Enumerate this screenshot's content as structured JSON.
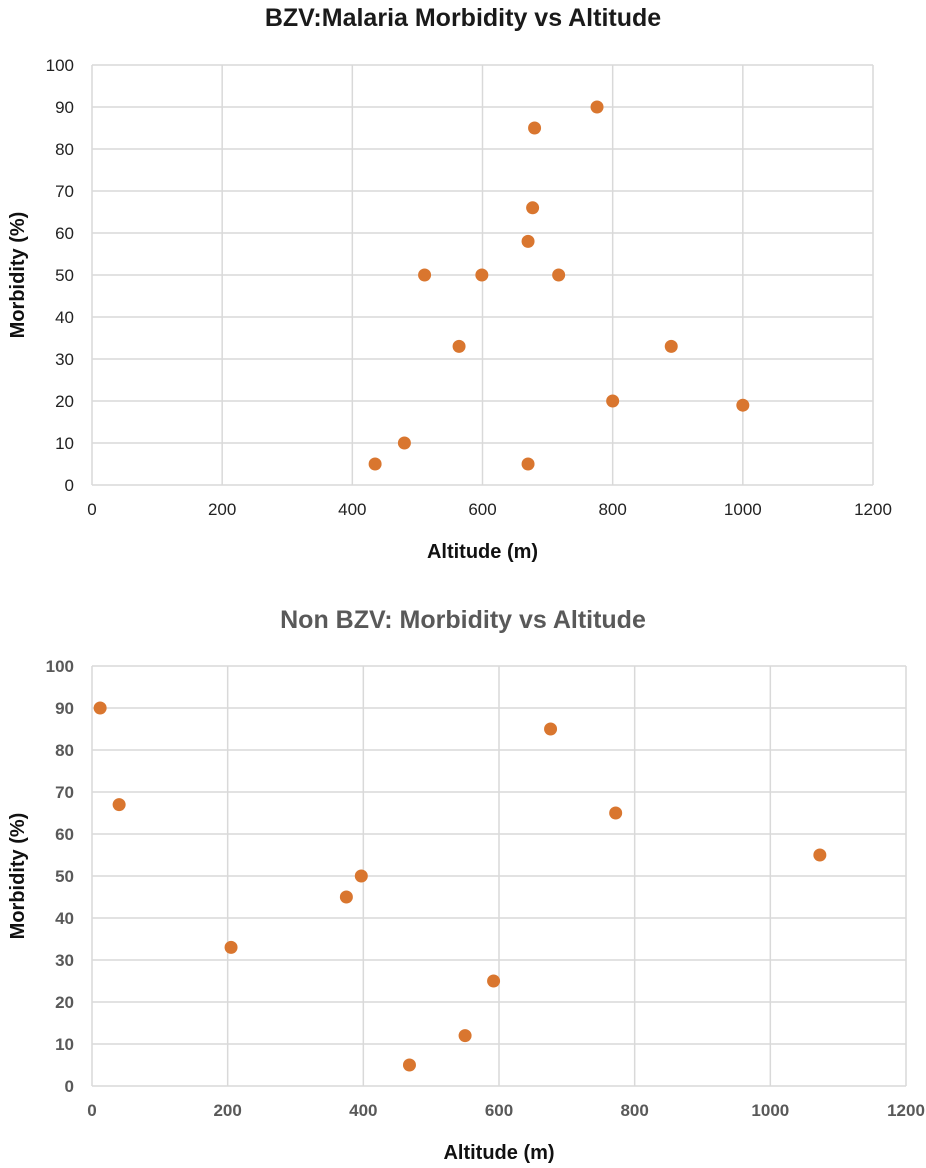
{
  "colors": {
    "marker": "#D9762F",
    "grid": "#D9D9D9",
    "title_dark": "#1a1a1a",
    "title_grey": "#595959",
    "tick_dark": "#222222",
    "tick_grey": "#595959"
  },
  "chart_data": [
    {
      "type": "scatter",
      "title": "BZV:Malaria Morbidity vs Altitude",
      "xlabel": "Altitude (m)",
      "ylabel": "Morbidity (%)",
      "xlim": [
        0,
        1200
      ],
      "ylim": [
        0,
        100
      ],
      "xticks": [
        0,
        200,
        400,
        600,
        800,
        1000,
        1200
      ],
      "yticks": [
        0,
        10,
        20,
        30,
        40,
        50,
        60,
        70,
        80,
        90,
        100
      ],
      "grid": true,
      "legend": null,
      "series": [
        {
          "name": "BZV",
          "x": [
            776,
            680,
            677,
            670,
            511,
            599,
            717,
            564,
            890,
            800,
            1000,
            480,
            435,
            670
          ],
          "y": [
            90,
            85,
            66,
            58,
            50,
            50,
            50,
            33,
            33,
            20,
            19,
            10,
            5,
            5
          ]
        }
      ]
    },
    {
      "type": "scatter",
      "title": "Non BZV: Morbidity vs Altitude",
      "xlabel": "Altitude (m)",
      "ylabel": "Morbidity (%)",
      "xlim": [
        0,
        1200
      ],
      "ylim": [
        0,
        100
      ],
      "xticks": [
        0,
        200,
        400,
        600,
        800,
        1000,
        1200
      ],
      "yticks": [
        0,
        10,
        20,
        30,
        40,
        50,
        60,
        70,
        80,
        90,
        100
      ],
      "grid": true,
      "legend": null,
      "series": [
        {
          "name": "Non BZV",
          "x": [
            12,
            40,
            205,
            375,
            397,
            676,
            772,
            1073,
            592,
            550,
            468
          ],
          "y": [
            90,
            67,
            33,
            45,
            50,
            85,
            65,
            55,
            25,
            12,
            5
          ]
        }
      ]
    }
  ]
}
